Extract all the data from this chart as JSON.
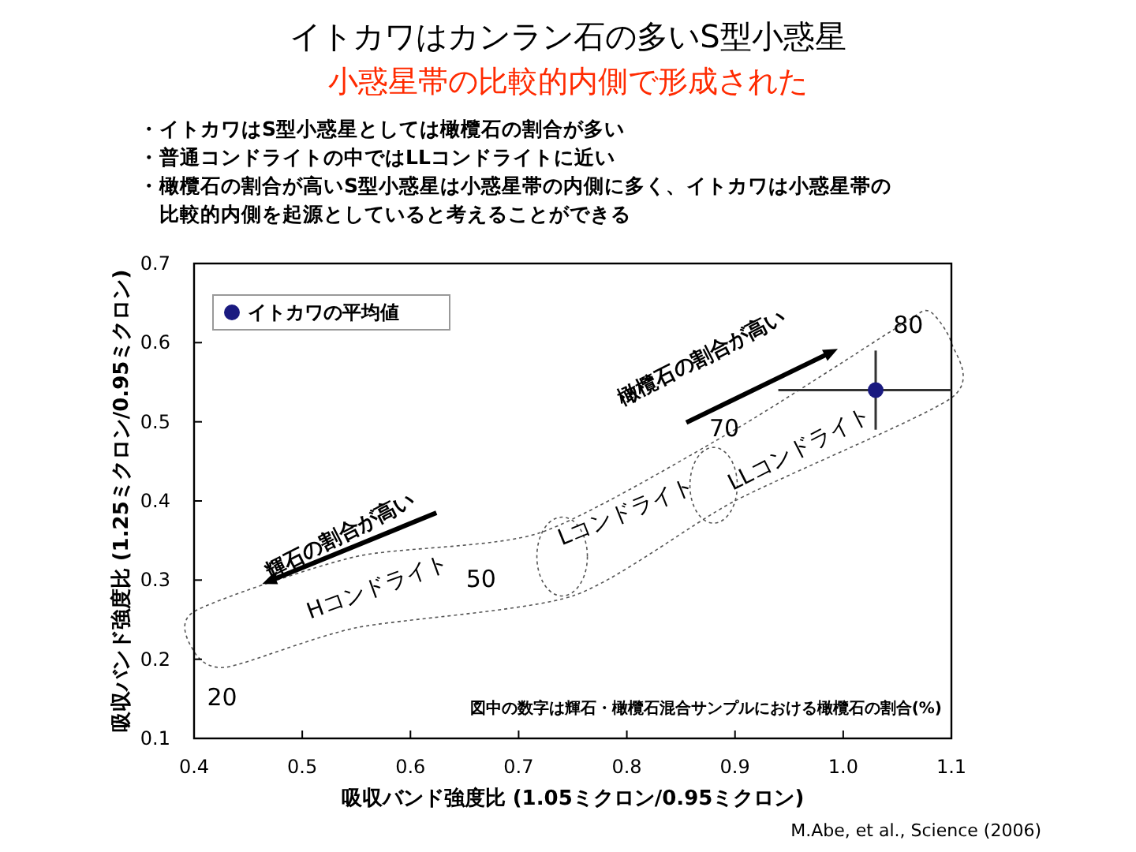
{
  "chart_data": {
    "type": "scatter",
    "title": "イトカワはカンラン石の多いS型小惑星",
    "subtitle": "小惑星帯の比較的内側で形成された",
    "xlabel": "吸収バンド強度比 (1.05ミクロン/0.95ミクロン)",
    "ylabel": "吸収バンド強度比 (1.25ミクロン/0.95ミクロン)",
    "x": [
      1.03
    ],
    "series": [
      {
        "name": "イトカワの平均値",
        "color": "#1a1a80",
        "values": [
          0.54
        ],
        "errors": [
          [
            0.49,
            0.59
          ]
        ],
        "xerrors": [
          [
            0.94,
            1.1
          ]
        ]
      }
    ],
    "xlim": [
      0.4,
      1.1
    ],
    "xticks": [
      0.4,
      0.5,
      0.6,
      0.7,
      0.8,
      0.9,
      {
        "value": 1,
        "label": "1.0"
      },
      1.1
    ],
    "ylim": [
      0.1,
      0.7
    ],
    "yticks": [
      0.1,
      0.2,
      0.3,
      0.4,
      0.5,
      0.6,
      0.7
    ],
    "grid": false,
    "legend": "top left",
    "marker": "circle",
    "annotations": [
      "80",
      "70",
      "50",
      "20",
      "Hコンドライト",
      "Lコンドライト",
      "LLコンドライト",
      "橄欖石の割合が高い",
      "輝石の割合が高い",
      "図中の数字は輝石・橄欖石混合サンプルにおける橄欖石の割合(%)",
      "・イトカワはS型小惑星としては橄欖石の割合が多い",
      "・普通コンドライトの中ではLLコンドライトに近い",
      "・橄欖石の割合が高いS型小惑星は小惑星帯の内側に多く、イトカワは小惑星帯の",
      "　比較的内側を起源としていると考えることができる",
      "M.Abe, et al., Science (2006)"
    ]
  }
}
